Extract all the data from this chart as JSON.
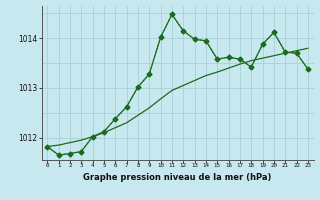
{
  "title": "Graphe pression niveau de la mer (hPa)",
  "bg_color": "#c8e8f0",
  "grid_color": "#a8d0d8",
  "line_color": "#1a6b1a",
  "x_hours": [
    0,
    1,
    2,
    3,
    4,
    5,
    6,
    7,
    8,
    9,
    10,
    11,
    12,
    13,
    14,
    15,
    16,
    17,
    18,
    19,
    20,
    21,
    22,
    23
  ],
  "main_series": [
    1011.82,
    1011.65,
    1011.68,
    1011.72,
    1012.02,
    1012.12,
    1012.38,
    1012.62,
    1013.02,
    1013.28,
    1014.02,
    1014.48,
    1014.15,
    1013.98,
    1013.95,
    1013.58,
    1013.62,
    1013.58,
    1013.42,
    1013.88,
    1014.12,
    1013.72,
    1013.7,
    1013.38
  ],
  "dotted_series": [
    1011.82,
    1011.65,
    1011.68,
    1011.72,
    1012.02,
    1012.12,
    1012.38,
    1012.62,
    1013.02,
    1013.28,
    1014.02,
    1014.48,
    1014.15,
    1013.98,
    1013.95,
    1013.58,
    1013.62,
    1013.58,
    1013.42,
    1013.88,
    1014.12,
    1013.72,
    1013.7,
    1013.38
  ],
  "trend_series": [
    1011.82,
    1011.85,
    1011.9,
    1011.95,
    1012.02,
    1012.1,
    1012.2,
    1012.3,
    1012.45,
    1012.6,
    1012.78,
    1012.95,
    1013.05,
    1013.15,
    1013.25,
    1013.32,
    1013.4,
    1013.48,
    1013.55,
    1013.6,
    1013.65,
    1013.7,
    1013.75,
    1013.8
  ],
  "ylim": [
    1011.55,
    1014.65
  ],
  "yticks": [
    1012,
    1013,
    1014
  ],
  "xlim": [
    -0.5,
    23.5
  ]
}
